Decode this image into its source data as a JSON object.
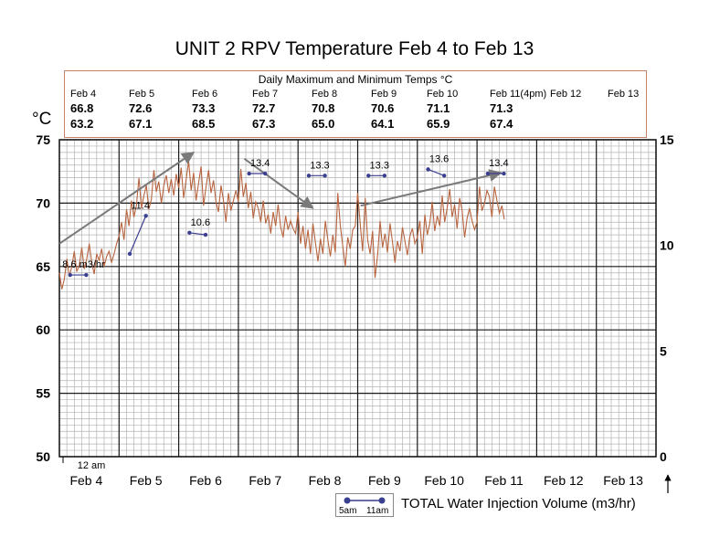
{
  "title": "UNIT 2 RPV Temperature Feb 4 to Feb 13",
  "temps_table": {
    "heading": "Daily Maximum and Minimum Temps °C",
    "columns": [
      {
        "date": "Feb 4",
        "max": "66.8",
        "min": "63.2"
      },
      {
        "date": "Feb 5",
        "max": "72.6",
        "min": "67.1"
      },
      {
        "date": "Feb 6",
        "max": "73.3",
        "min": "68.5"
      },
      {
        "date": "Feb 7",
        "max": "72.7",
        "min": "67.3"
      },
      {
        "date": "Feb 8",
        "max": "70.8",
        "min": "65.0"
      },
      {
        "date": "Feb 9",
        "max": "70.6",
        "min": "64.1"
      },
      {
        "date": "Feb 10",
        "max": "71.1",
        "min": "65.9"
      },
      {
        "date": "Feb 11(4pm)",
        "max": "71.3",
        "min": "67.4"
      },
      {
        "date": "Feb 12",
        "max": "",
        "min": ""
      },
      {
        "date": "Feb 13",
        "max": "",
        "min": ""
      }
    ]
  },
  "unit_label": "°C",
  "midnight_label": "12 am",
  "legend": {
    "start": "5am",
    "end": "11am",
    "caption": "TOTAL Water Injection Volume (m3/hr)"
  },
  "colors": {
    "temperature_line": "#b8643f",
    "injection": "#3a3f8f",
    "grid_minor": "#b3b3b3",
    "grid_major": "#1a1a1a",
    "trend_arrow": "#7a7a7a",
    "box_border": "#c9806a"
  },
  "chart_data": {
    "type": "line",
    "title": "UNIT 2 RPV Temperature Feb 4 to Feb 13",
    "x_categories": [
      "Feb 4",
      "Feb 5",
      "Feb 6",
      "Feb 7",
      "Feb 8",
      "Feb 9",
      "Feb 10",
      "Feb 11",
      "Feb 12",
      "Feb 13"
    ],
    "y_left": {
      "label": "°C",
      "min": 50,
      "max": 75,
      "ticks": [
        50,
        55,
        60,
        65,
        70,
        75
      ]
    },
    "y_right": {
      "min": 0,
      "max": 15,
      "ticks": [
        0,
        5,
        10,
        15
      ]
    },
    "grid": true,
    "temperature_series": {
      "name": "RPV Temperature",
      "day_offset_start": 0,
      "points_per_day": 24,
      "values": [
        64.5,
        63.2,
        64.0,
        65.6,
        64.2,
        65.0,
        66.2,
        64.6,
        65.1,
        66.5,
        64.8,
        65.6,
        66.8,
        65.3,
        64.4,
        66.0,
        65.5,
        66.4,
        65.0,
        65.8,
        66.2,
        65.3,
        66.0,
        66.8,
        67.4,
        68.5,
        67.1,
        69.5,
        68.2,
        70.2,
        68.9,
        69.8,
        72.0,
        69.6,
        70.6,
        71.4,
        69.5,
        70.3,
        72.6,
        70.9,
        71.7,
        70.0,
        71.4,
        72.2,
        70.8,
        71.9,
        70.6,
        72.3,
        71.2,
        72.8,
        70.4,
        71.9,
        73.3,
        71.0,
        72.4,
        70.2,
        71.6,
        72.9,
        69.8,
        71.3,
        72.6,
        70.8,
        71.8,
        70.1,
        69.3,
        71.4,
        70.2,
        68.5,
        70.8,
        69.4,
        70.2,
        71.0,
        70.1,
        72.7,
        70.5,
        71.6,
        69.6,
        70.9,
        68.8,
        70.1,
        69.6,
        68.5,
        70.2,
        68.4,
        69.1,
        67.6,
        69.3,
        68.2,
        69.9,
        68.1,
        67.3,
        69.0,
        67.9,
        68.6,
        68.0,
        67.6,
        69.3,
        66.8,
        68.2,
        66.4,
        67.9,
        66.0,
        68.4,
        66.9,
        65.4,
        67.2,
        66.0,
        68.6,
        67.1,
        65.8,
        67.5,
        66.1,
        70.8,
        68.2,
        66.6,
        65.0,
        67.3,
        66.4,
        67.9,
        68.2,
        70.8,
        68.4,
        66.2,
        70.4,
        67.1,
        66.0,
        67.8,
        64.1,
        65.9,
        68.6,
        66.5,
        67.6,
        66.1,
        68.4,
        66.9,
        65.3,
        67.0,
        66.2,
        68.1,
        67.0,
        65.9,
        67.4,
        68.0,
        66.8,
        67.3,
        68.6,
        66.0,
        69.1,
        67.5,
        68.4,
        70.1,
        67.8,
        69.0,
        68.2,
        70.6,
        68.5,
        69.6,
        71.1,
        68.9,
        69.9,
        68.0,
        70.4,
        69.4,
        67.3,
        68.8,
        69.6,
        68.6,
        67.9,
        68.5,
        71.3,
        69.4,
        70.0,
        71.0,
        70.5,
        68.9,
        71.3,
        70.2,
        69.2,
        69.8,
        68.7
      ],
      "daily_max": [
        66.8,
        72.6,
        73.3,
        72.7,
        70.8,
        70.6,
        71.1,
        71.3
      ],
      "daily_min": [
        63.2,
        67.1,
        68.5,
        67.3,
        65.0,
        64.1,
        65.9,
        67.4
      ]
    },
    "injection_series": {
      "name": "TOTAL Water Injection Volume (m3/hr)",
      "axis": "right",
      "segments": [
        {
          "day": "Feb 4",
          "label": "8.6 m3/hr",
          "start": 8.6,
          "end": 8.6
        },
        {
          "day": "Feb 5",
          "label": "11.4",
          "start": 9.6,
          "end": 11.4
        },
        {
          "day": "Feb 6",
          "label": "10.6",
          "start": 10.6,
          "end": 10.5
        },
        {
          "day": "Feb 7",
          "label": "13.4",
          "start": 13.4,
          "end": 13.4
        },
        {
          "day": "Feb 8",
          "label": "13.3",
          "start": 13.3,
          "end": 13.3
        },
        {
          "day": "Feb 9",
          "label": "13.3",
          "start": 13.3,
          "end": 13.3
        },
        {
          "day": "Feb 10",
          "label": "13.6",
          "start": 13.6,
          "end": 13.3
        },
        {
          "day": "Feb 11",
          "label": "13.4",
          "start": 13.4,
          "end": 13.4
        }
      ]
    },
    "trend_arrows": [
      {
        "from_day": 0.0,
        "from_temp": 66.8,
        "to_day": 2.25,
        "to_temp": 74.0
      },
      {
        "from_day": 3.1,
        "from_temp": 73.5,
        "to_day": 4.25,
        "to_temp": 69.6
      },
      {
        "from_day": 5.05,
        "from_temp": 69.8,
        "to_day": 7.4,
        "to_temp": 72.4
      }
    ]
  }
}
